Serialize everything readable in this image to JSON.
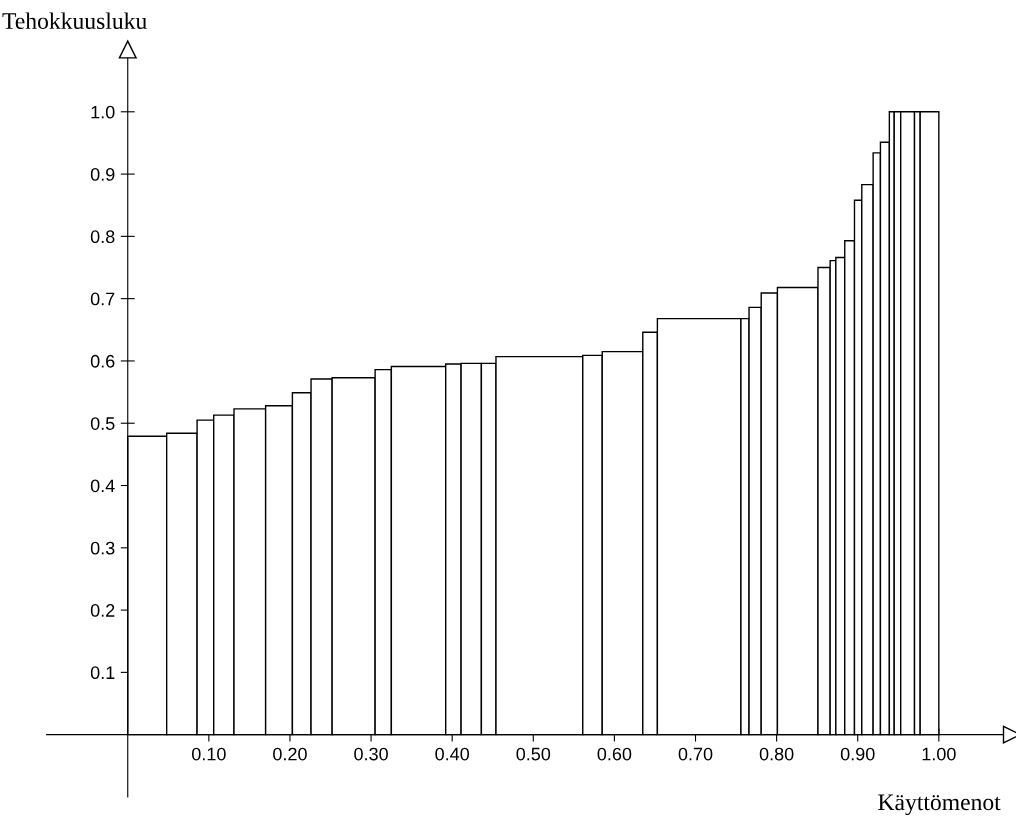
{
  "chart_data": {
    "type": "histogram",
    "xlabel": "Käyttömenot",
    "ylabel": "Tehokkuusluku",
    "bins": [
      0,
      0.048,
      0.0855,
      0.106,
      0.131,
      0.17,
      0.203,
      0.226,
      0.252,
      0.305,
      0.325,
      0.392,
      0.411,
      0.436,
      0.454,
      0.561,
      0.585,
      0.635,
      0.653,
      0.756,
      0.766,
      0.781,
      0.801,
      0.851,
      0.866,
      0.873,
      0.884,
      0.896,
      0.905,
      0.919,
      0.928,
      0.939,
      0.945,
      0.953,
      0.97,
      0.977,
      1.0
    ],
    "values": [
      0.479,
      0.484,
      0.505,
      0.513,
      0.523,
      0.528,
      0.549,
      0.571,
      0.573,
      0.586,
      0.591,
      0.595,
      0.596,
      0.596,
      0.607,
      0.609,
      0.615,
      0.646,
      0.668,
      0.668,
      0.686,
      0.709,
      0.718,
      0.75,
      0.761,
      0.766,
      0.793,
      0.858,
      0.883,
      0.934,
      0.951,
      1.0,
      1.0,
      1.0,
      1.0,
      1.0
    ],
    "color": "#ffffff",
    "xlim": [
      -0.1,
      1.09
    ],
    "ylim": [
      -0.1,
      1.1
    ],
    "xticks": [
      {
        "value": 0.1,
        "label": "0.10"
      },
      {
        "value": 0.2,
        "label": "0.20"
      },
      {
        "value": 0.3,
        "label": "0.30"
      },
      {
        "value": 0.4,
        "label": "0.40"
      },
      {
        "value": 0.5,
        "label": "0.50"
      },
      {
        "value": 0.6,
        "label": "0.60"
      },
      {
        "value": 0.7,
        "label": "0.70"
      },
      {
        "value": 0.8,
        "label": "0.80"
      },
      {
        "value": 0.9,
        "label": "0.90"
      },
      {
        "value": 1.0,
        "label": "1.00"
      }
    ],
    "yticks": [
      0.1,
      0.2,
      0.3,
      0.4,
      0.5,
      0.6,
      0.7,
      0.8,
      0.9,
      {
        "value": 1.0,
        "label": "1.0"
      }
    ],
    "grid": false,
    "legend": false
  }
}
